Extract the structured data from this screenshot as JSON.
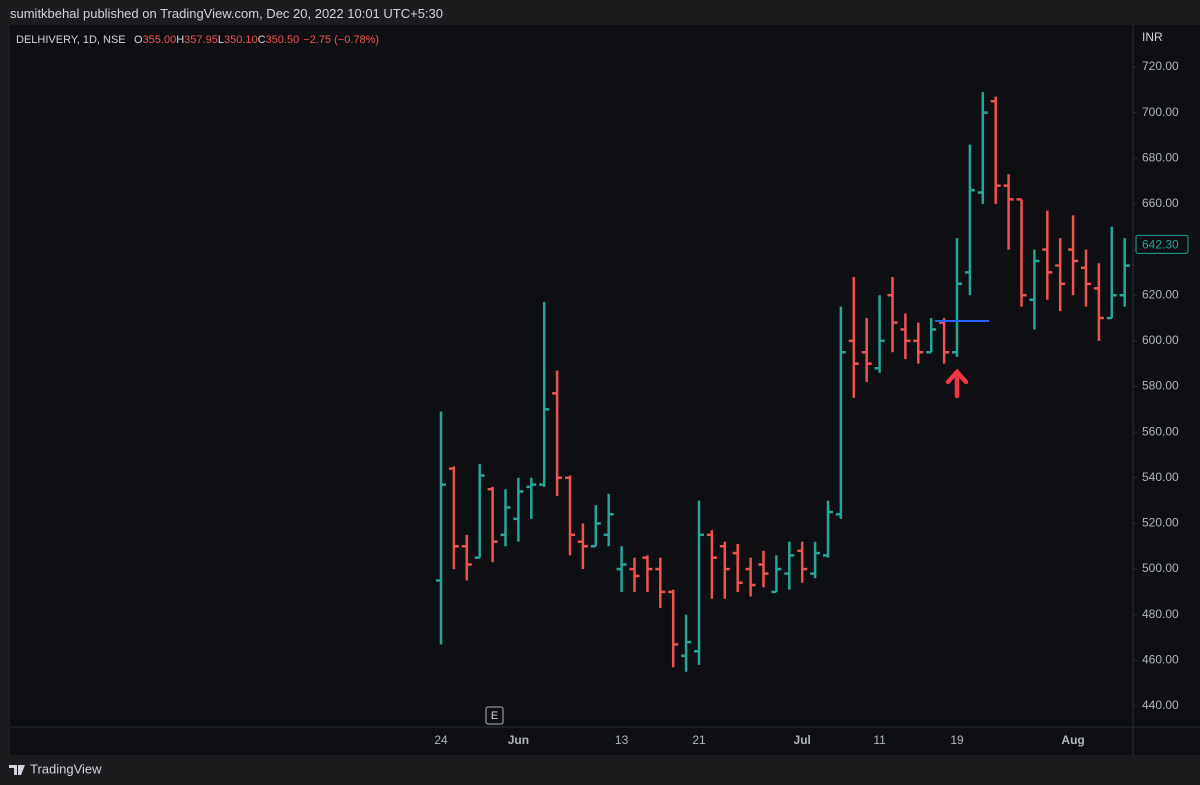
{
  "header": {
    "published": "sumitkbehal published on TradingView.com, Dec 20, 2022 10:01 UTC+5:30"
  },
  "legend": {
    "symbol": "DELHIVERY, 1D, NSE",
    "ohlc": [
      {
        "key": "O",
        "value": "355.00"
      },
      {
        "key": "H",
        "value": "357.95"
      },
      {
        "key": "L",
        "value": "350.10"
      },
      {
        "key": "C",
        "value": "350.50"
      }
    ],
    "change": "−2.75 (−0.78%)"
  },
  "footer": {
    "brand": "TradingView"
  },
  "chart_data": {
    "type": "ohlc",
    "currency": "INR",
    "categories": [
      "24",
      null,
      null,
      null,
      null,
      null,
      "Jun",
      null,
      null,
      null,
      null,
      null,
      null,
      null,
      "13",
      null,
      null,
      null,
      null,
      null,
      "21",
      null,
      null,
      null,
      null,
      null,
      null,
      null,
      "Jul",
      null,
      null,
      null,
      null,
      null,
      "11",
      null,
      null,
      null,
      null,
      null,
      "19",
      null,
      null,
      null,
      null,
      null,
      null,
      null,
      null,
      "Aug",
      null,
      null,
      null,
      null
    ],
    "open": [
      495,
      544,
      510,
      505,
      535,
      515,
      522,
      536,
      537,
      577,
      540,
      512,
      510,
      515,
      500,
      500,
      505,
      500,
      490,
      462,
      464,
      515,
      510,
      507,
      500,
      502,
      490,
      498,
      508,
      498,
      506,
      524,
      600,
      595,
      588,
      620,
      605,
      600,
      595,
      608,
      595,
      630,
      665,
      705,
      668,
      662,
      618,
      640,
      633,
      640,
      632,
      623,
      610,
      620
    ],
    "high": [
      569,
      545,
      515,
      546,
      536,
      535,
      540,
      540,
      617,
      587,
      541,
      520,
      528,
      533,
      510,
      505,
      506,
      505,
      491,
      480,
      530,
      517,
      512,
      511,
      505,
      508,
      506,
      512,
      512,
      512,
      530,
      615,
      628,
      610,
      620,
      628,
      612,
      608,
      610,
      610,
      645,
      686,
      709,
      707,
      673,
      662,
      640,
      657,
      645,
      655,
      640,
      634,
      650,
      645
    ],
    "low": [
      467,
      500,
      495,
      505,
      503,
      510,
      512,
      522,
      536,
      532,
      506,
      500,
      510,
      510,
      490,
      490,
      490,
      483,
      457,
      455,
      458,
      487,
      487,
      490,
      488,
      492,
      490,
      491,
      494,
      496,
      505,
      522,
      575,
      582,
      586,
      595,
      592,
      590,
      595,
      590,
      593,
      620,
      660,
      660,
      640,
      615,
      605,
      618,
      613,
      620,
      615,
      600,
      610,
      615
    ],
    "close": [
      537,
      510,
      502,
      541,
      512,
      527,
      534,
      537,
      570,
      540,
      515,
      510,
      520,
      524,
      502,
      497,
      500,
      490,
      467,
      468,
      515,
      505,
      500,
      494,
      493,
      498,
      500,
      506,
      500,
      507,
      525,
      595,
      590,
      590,
      600,
      608,
      600,
      595,
      605,
      595,
      625,
      666,
      700,
      668,
      662,
      620,
      635,
      630,
      625,
      635,
      625,
      610,
      620,
      633
    ],
    "up_color": "#26a69a",
    "down_color": "#ef5350",
    "level_line": {
      "value": 608.7,
      "color": "#2962ff"
    },
    "last_price": {
      "value": 642.3,
      "label": "642.30"
    },
    "earnings_marker": "E",
    "ylim": [
      430.8,
      738.4
    ],
    "yticks": [
      {
        "value": 440,
        "label": "440.00"
      },
      {
        "value": 460,
        "label": "460.00"
      },
      {
        "value": 480,
        "label": "480.00"
      },
      {
        "value": 500,
        "label": "500.00"
      },
      {
        "value": 520,
        "label": "520.00"
      },
      {
        "value": 540,
        "label": "540.00"
      },
      {
        "value": 560,
        "label": "560.00"
      },
      {
        "value": 580,
        "label": "580.00"
      },
      {
        "value": 600,
        "label": "600.00"
      },
      {
        "value": 620,
        "label": "620.00"
      },
      {
        "value": 640,
        "label": "640.00"
      },
      {
        "value": 660,
        "label": "660.00"
      },
      {
        "value": 680,
        "label": "680.00"
      },
      {
        "value": 700,
        "label": "700.00"
      },
      {
        "value": 720,
        "label": "720.00"
      }
    ],
    "grid": false
  }
}
